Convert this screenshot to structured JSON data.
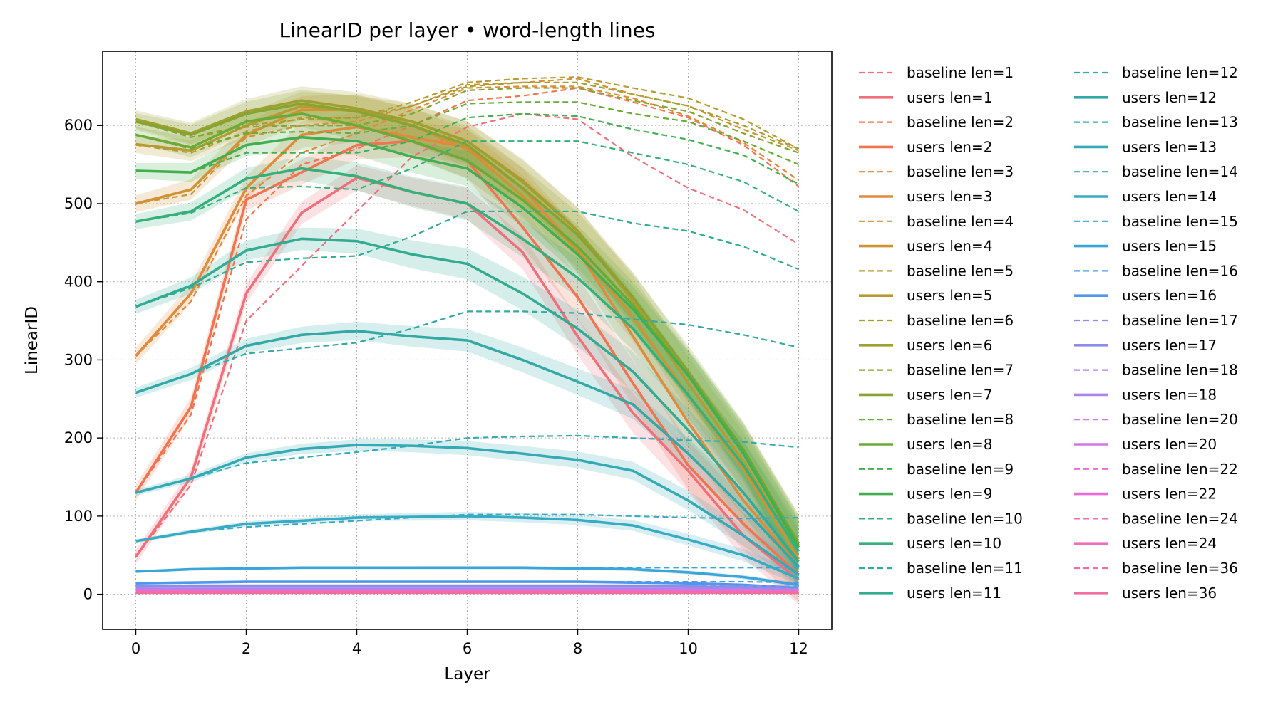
{
  "chart_data": {
    "type": "line",
    "title": "LinearID per layer • word-length lines",
    "xlabel": "Layer",
    "ylabel": "LinearID",
    "xlim": [
      -0.6,
      12.6
    ],
    "ylim": [
      -45,
      695
    ],
    "x_ticks": [
      0,
      2,
      4,
      6,
      8,
      10,
      12
    ],
    "y_ticks": [
      0,
      100,
      200,
      300,
      400,
      500,
      600
    ],
    "grid": true,
    "legend_placement": "outside-right",
    "x": [
      0,
      1,
      2,
      3,
      4,
      5,
      6,
      7,
      8,
      9,
      10,
      11,
      12
    ],
    "series": [
      {
        "name": "baseline len=1",
        "style": "dashed",
        "color": "#f0707a",
        "values": [
          48,
          140,
          350,
          420,
          490,
          560,
          598,
          615,
          608,
          560,
          520,
          492,
          448
        ]
      },
      {
        "name": "users len=1",
        "style": "solid",
        "color": "#f0707a",
        "band": 22,
        "values": [
          48,
          150,
          385,
          488,
          533,
          515,
          500,
          438,
          330,
          232,
          158,
          75,
          18
        ]
      },
      {
        "name": "baseline len=2",
        "style": "dashed",
        "color": "#f07450",
        "values": [
          130,
          230,
          480,
          550,
          570,
          600,
          632,
          638,
          648,
          630,
          610,
          575,
          522
        ]
      },
      {
        "name": "users len=2",
        "style": "solid",
        "color": "#f07450",
        "band": 25,
        "values": [
          130,
          240,
          505,
          540,
          575,
          580,
          555,
          470,
          380,
          270,
          165,
          90,
          25
        ]
      },
      {
        "name": "baseline len=3",
        "style": "dashed",
        "color": "#e08a3c",
        "values": [
          305,
          375,
          510,
          565,
          590,
          620,
          648,
          650,
          650,
          635,
          612,
          578,
          530
        ]
      },
      {
        "name": "users len=3",
        "style": "solid",
        "color": "#e08a3c",
        "band": 26,
        "values": [
          305,
          385,
          520,
          588,
          598,
          585,
          572,
          520,
          440,
          330,
          220,
          120,
          35
        ]
      },
      {
        "name": "baseline len=4",
        "style": "dashed",
        "color": "#cf9334",
        "values": [
          500,
          512,
          585,
          600,
          605,
          625,
          652,
          655,
          660,
          640,
          625,
          595,
          568
        ]
      },
      {
        "name": "users len=4",
        "style": "solid",
        "color": "#cf9334",
        "band": 27,
        "values": [
          500,
          518,
          588,
          620,
          620,
          600,
          570,
          510,
          440,
          355,
          255,
          160,
          45
        ]
      },
      {
        "name": "baseline len=5",
        "style": "dashed",
        "color": "#b89a32",
        "values": [
          575,
          565,
          592,
          610,
          610,
          630,
          655,
          660,
          662,
          648,
          635,
          608,
          570
        ]
      },
      {
        "name": "users len=5",
        "style": "solid",
        "color": "#b89a32",
        "band": 28,
        "values": [
          576,
          568,
          600,
          625,
          618,
          605,
          580,
          530,
          465,
          375,
          270,
          170,
          55
        ]
      },
      {
        "name": "baseline len=6",
        "style": "dashed",
        "color": "#a0a030",
        "values": [
          605,
          585,
          600,
          608,
          610,
          625,
          650,
          655,
          655,
          640,
          625,
          600,
          570
        ]
      },
      {
        "name": "users len=6",
        "style": "solid",
        "color": "#a0a030",
        "band": 28,
        "values": [
          608,
          590,
          618,
          632,
          622,
          605,
          580,
          528,
          465,
          380,
          280,
          180,
          62
        ]
      },
      {
        "name": "baseline len=7",
        "style": "dashed",
        "color": "#86a433",
        "values": [
          605,
          585,
          598,
          600,
          600,
          615,
          645,
          648,
          648,
          632,
          618,
          590,
          565
        ]
      },
      {
        "name": "users len=7",
        "style": "solid",
        "color": "#86a433",
        "band": 27,
        "values": [
          605,
          588,
          615,
          628,
          618,
          600,
          575,
          520,
          460,
          380,
          285,
          185,
          65
        ]
      },
      {
        "name": "baseline len=8",
        "style": "dashed",
        "color": "#6aaa38",
        "values": [
          588,
          570,
          590,
          592,
          590,
          600,
          628,
          630,
          630,
          615,
          605,
          580,
          550
        ]
      },
      {
        "name": "users len=8",
        "style": "solid",
        "color": "#6aaa38",
        "band": 26,
        "values": [
          588,
          572,
          605,
          615,
          600,
          580,
          555,
          505,
          445,
          370,
          280,
          185,
          62
        ]
      },
      {
        "name": "baseline len=9",
        "style": "dashed",
        "color": "#42ae50",
        "values": [
          542,
          540,
          565,
          565,
          565,
          580,
          610,
          615,
          612,
          595,
          582,
          562,
          525
        ]
      },
      {
        "name": "users len=9",
        "style": "solid",
        "color": "#42ae50",
        "band": 25,
        "values": [
          542,
          540,
          575,
          585,
          580,
          560,
          545,
          495,
          435,
          365,
          280,
          180,
          60
        ]
      },
      {
        "name": "baseline len=10",
        "style": "dashed",
        "color": "#36b07a",
        "values": [
          477,
          488,
          520,
          522,
          518,
          545,
          580,
          580,
          580,
          565,
          550,
          528,
          490
        ]
      },
      {
        "name": "users len=10",
        "style": "solid",
        "color": "#36b07a",
        "band": 24,
        "values": [
          477,
          490,
          532,
          545,
          535,
          515,
          500,
          455,
          405,
          340,
          255,
          165,
          55
        ]
      },
      {
        "name": "baseline len=11",
        "style": "dashed",
        "color": "#33ab93",
        "values": [
          368,
          392,
          425,
          430,
          433,
          458,
          490,
          490,
          490,
          475,
          465,
          445,
          416
        ]
      },
      {
        "name": "users len=11",
        "style": "solid",
        "color": "#33ab93",
        "band": 22,
        "values": [
          368,
          395,
          440,
          455,
          452,
          435,
          423,
          385,
          340,
          285,
          210,
          130,
          42
        ]
      },
      {
        "name": "baseline len=12",
        "style": "dashed",
        "color": "#33a8a5",
        "values": [
          258,
          282,
          308,
          315,
          322,
          340,
          362,
          362,
          360,
          352,
          345,
          332,
          316
        ]
      },
      {
        "name": "users len=12",
        "style": "solid",
        "color": "#33a8a5",
        "band": 16,
        "values": [
          258,
          282,
          318,
          332,
          337,
          330,
          325,
          300,
          272,
          243,
          180,
          110,
          35
        ]
      },
      {
        "name": "baseline len=13",
        "style": "dashed",
        "color": "#35a9b4",
        "values": [
          130,
          148,
          168,
          175,
          182,
          190,
          200,
          202,
          203,
          200,
          197,
          195,
          188
        ]
      },
      {
        "name": "users len=13",
        "style": "solid",
        "color": "#35a9b4",
        "band": 10,
        "values": [
          130,
          148,
          175,
          186,
          191,
          190,
          187,
          180,
          172,
          158,
          120,
          75,
          25
        ]
      },
      {
        "name": "baseline len=14",
        "style": "dashed",
        "color": "#38aac2",
        "values": [
          68,
          80,
          86,
          90,
          94,
          98,
          102,
          102,
          102,
          100,
          98,
          97,
          98
        ]
      },
      {
        "name": "users len=14",
        "style": "solid",
        "color": "#38aac2",
        "band": 6,
        "values": [
          68,
          80,
          90,
          94,
          98,
          99,
          100,
          98,
          95,
          88,
          70,
          50,
          20
        ]
      },
      {
        "name": "baseline len=15",
        "style": "dashed",
        "color": "#3aa6d8",
        "values": [
          29,
          32,
          33,
          34,
          34,
          34,
          34,
          34,
          34,
          34,
          34,
          34,
          34
        ]
      },
      {
        "name": "users len=15",
        "style": "solid",
        "color": "#3aa6d8",
        "band": 2,
        "values": [
          29,
          32,
          33,
          34,
          34,
          34,
          34,
          34,
          33,
          32,
          28,
          22,
          12
        ]
      },
      {
        "name": "baseline len=16",
        "style": "dashed",
        "color": "#4f97ea",
        "values": [
          14,
          15,
          16,
          16,
          16,
          16,
          16,
          16,
          16,
          16,
          16,
          16,
          15
        ]
      },
      {
        "name": "users len=16",
        "style": "solid",
        "color": "#4f97ea",
        "band": 1,
        "values": [
          14,
          15,
          16,
          16,
          16,
          16,
          16,
          16,
          16,
          15,
          14,
          12,
          8
        ]
      },
      {
        "name": "baseline len=17",
        "style": "dashed",
        "color": "#8b8ee8",
        "values": [
          10,
          11,
          11,
          11,
          11,
          11,
          11,
          11,
          11,
          11,
          11,
          11,
          10
        ]
      },
      {
        "name": "users len=17",
        "style": "solid",
        "color": "#8b8ee8",
        "band": 1,
        "values": [
          10,
          11,
          11,
          11,
          11,
          11,
          11,
          11,
          11,
          11,
          10,
          9,
          6
        ]
      },
      {
        "name": "baseline len=18",
        "style": "dashed",
        "color": "#b082ec",
        "values": [
          7,
          7,
          7,
          7,
          7,
          7,
          7,
          7,
          7,
          7,
          7,
          7,
          7
        ]
      },
      {
        "name": "users len=18",
        "style": "solid",
        "color": "#b082ec",
        "band": 1,
        "values": [
          7,
          7,
          7,
          7,
          7,
          7,
          7,
          7,
          7,
          7,
          7,
          6,
          5
        ]
      },
      {
        "name": "baseline len=20",
        "style": "dashed",
        "color": "#d078ea",
        "values": [
          5,
          5,
          5,
          5,
          5,
          5,
          5,
          5,
          5,
          5,
          5,
          5,
          5
        ]
      },
      {
        "name": "users len=20",
        "style": "solid",
        "color": "#d078ea",
        "band": 0,
        "values": [
          5,
          5,
          5,
          5,
          5,
          5,
          5,
          5,
          5,
          5,
          5,
          5,
          4
        ]
      },
      {
        "name": "baseline len=22",
        "style": "dashed",
        "color": "#ec6ad8",
        "values": [
          4,
          4,
          4,
          4,
          4,
          4,
          4,
          4,
          4,
          4,
          4,
          4,
          4
        ]
      },
      {
        "name": "users len=22",
        "style": "solid",
        "color": "#ec6ad8",
        "band": 0,
        "values": [
          4,
          4,
          4,
          4,
          4,
          4,
          4,
          4,
          4,
          4,
          4,
          4,
          3
        ]
      },
      {
        "name": "baseline len=24",
        "style": "dashed",
        "color": "#f06cbc",
        "values": [
          3,
          3,
          3,
          3,
          3,
          3,
          3,
          3,
          3,
          3,
          3,
          3,
          3
        ]
      },
      {
        "name": "users len=24",
        "style": "solid",
        "color": "#f06cbc",
        "band": 0,
        "values": [
          3,
          3,
          3,
          3,
          3,
          3,
          3,
          3,
          3,
          3,
          3,
          3,
          3
        ]
      },
      {
        "name": "baseline len=36",
        "style": "dashed",
        "color": "#f06e9c",
        "values": [
          2,
          2,
          2,
          2,
          2,
          2,
          2,
          2,
          2,
          2,
          2,
          2,
          2
        ]
      },
      {
        "name": "users len=36",
        "style": "solid",
        "color": "#f06e9c",
        "band": 0,
        "values": [
          2,
          2,
          2,
          2,
          2,
          2,
          2,
          2,
          2,
          2,
          2,
          2,
          2
        ]
      }
    ]
  }
}
